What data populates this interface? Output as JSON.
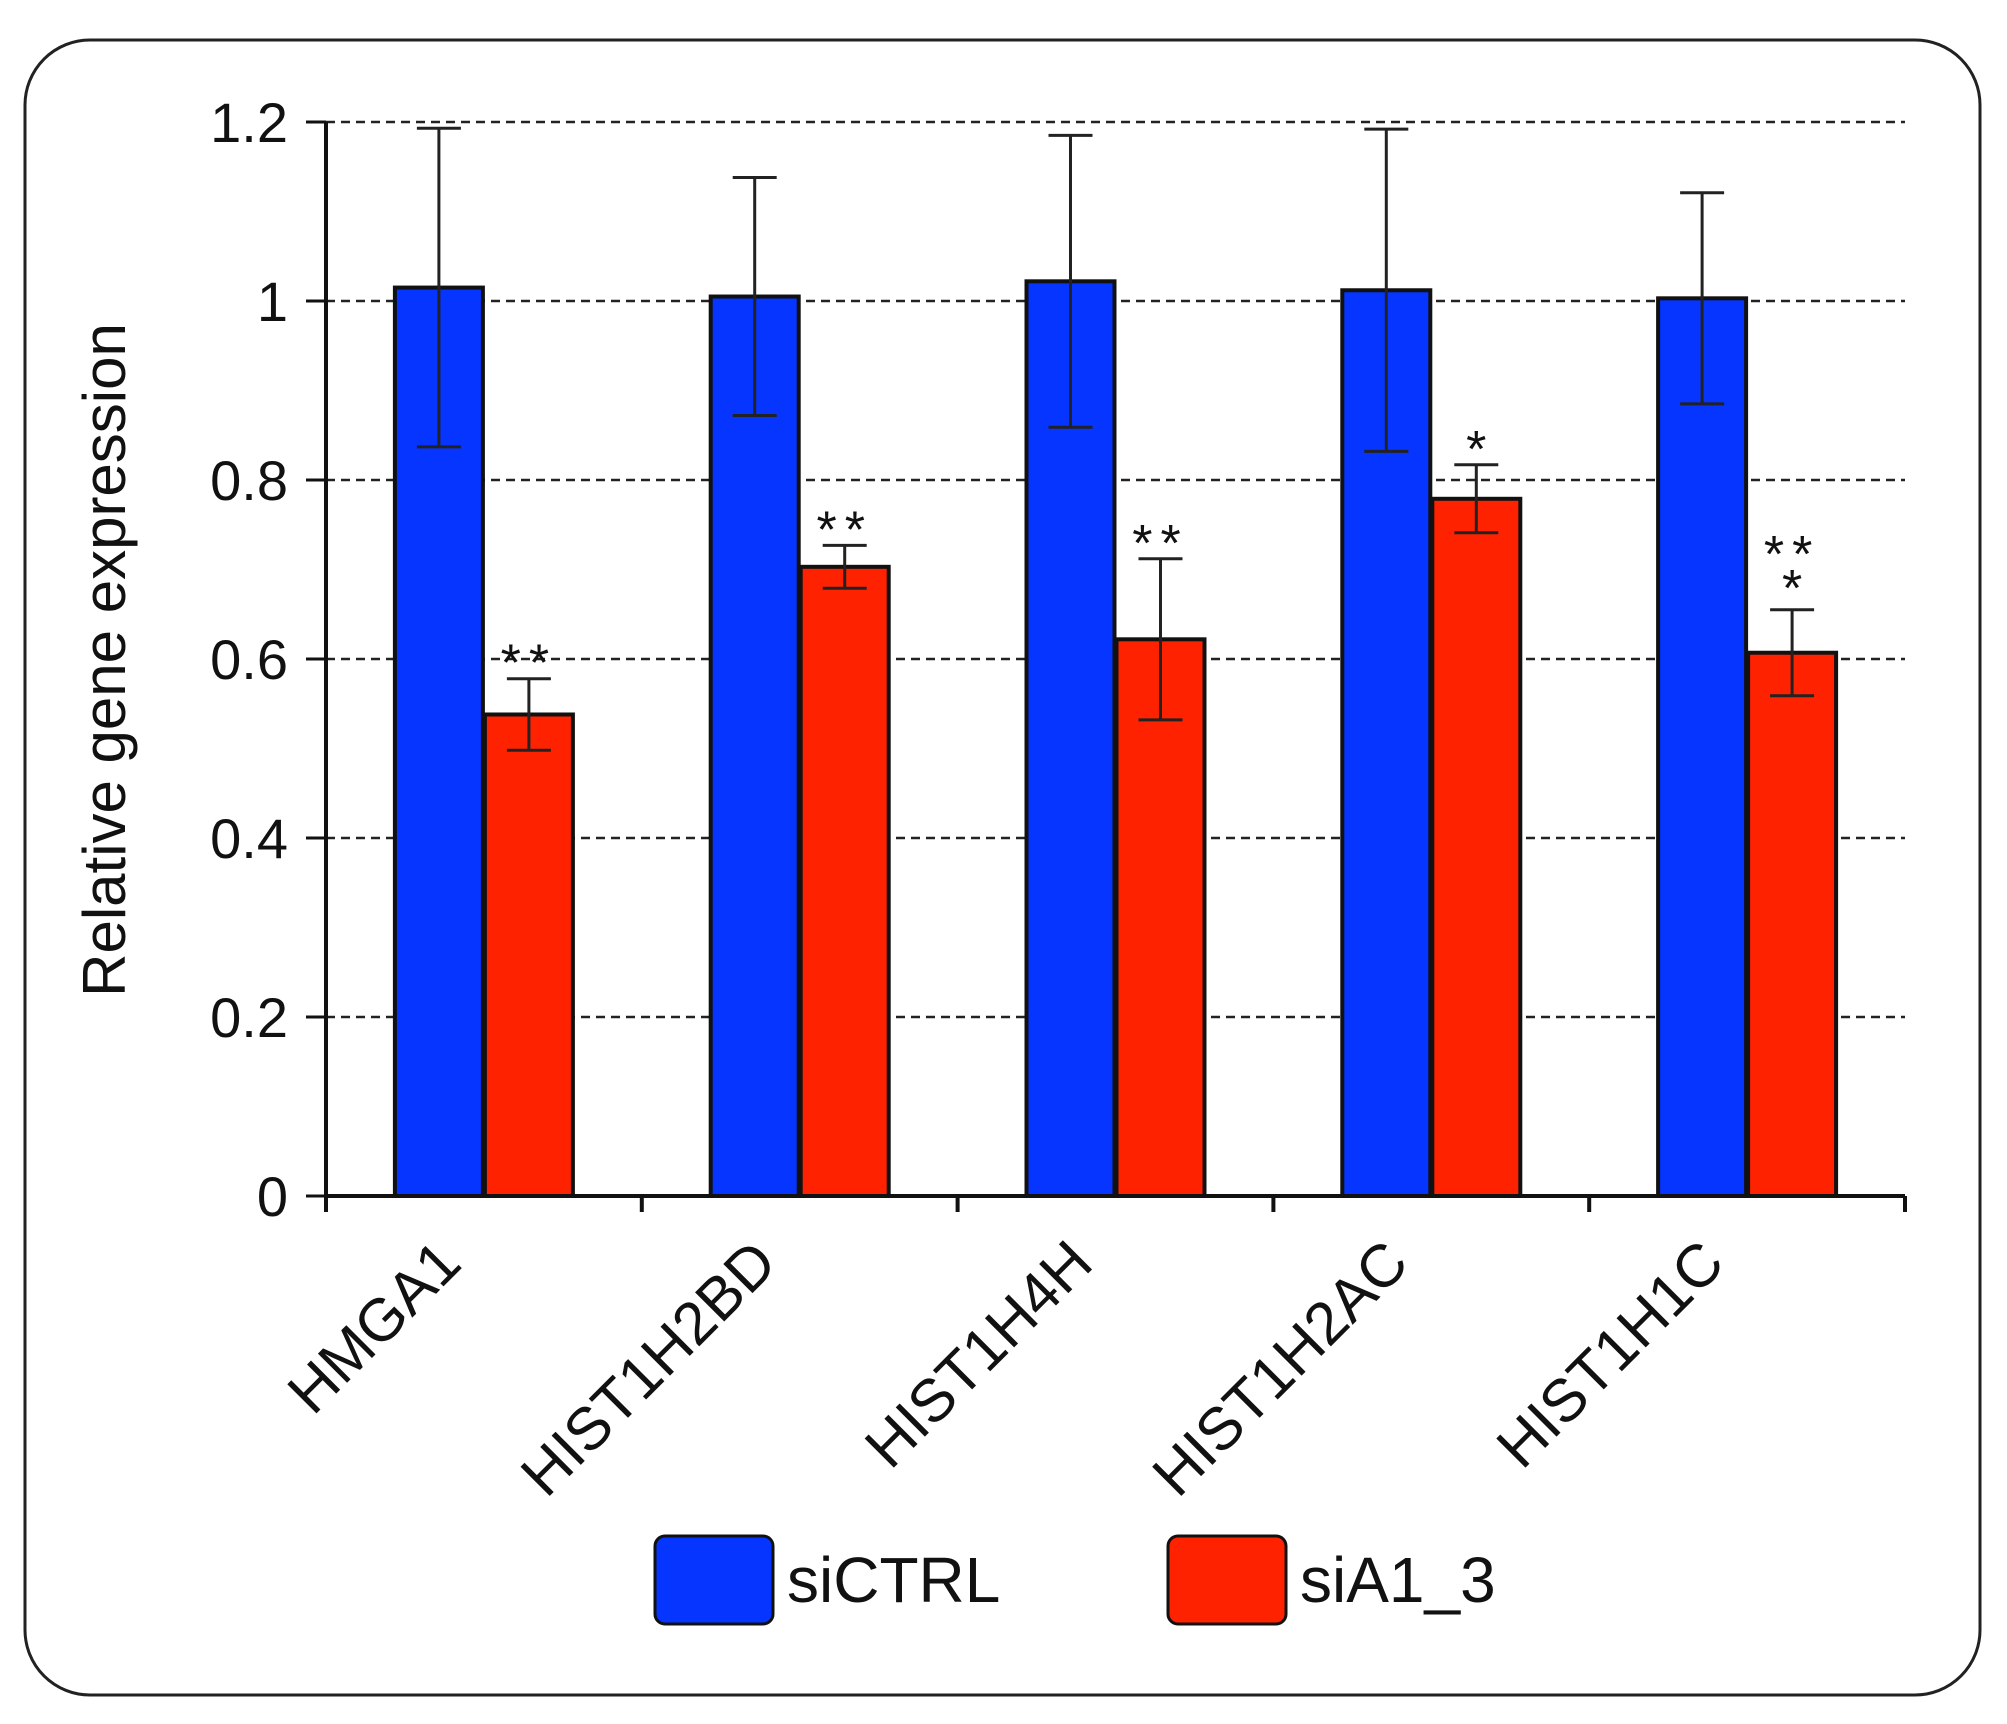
{
  "chart_data": {
    "type": "bar",
    "title": "",
    "xlabel": "",
    "ylabel": "Relative gene expression",
    "ylim": [
      0,
      1.2
    ],
    "yticks": [
      "0",
      "0.2",
      "0.4",
      "0.6",
      "0.8",
      "1",
      "1.2"
    ],
    "grid": true,
    "categories": [
      "HMGA1",
      "HIST1H2BD",
      "HIST1H4H",
      "HIST1H2AC",
      "HIST1H1C"
    ],
    "series": [
      {
        "name": "siCTRL",
        "color": "#0535FF",
        "values": [
          1.015,
          1.005,
          1.022,
          1.012,
          1.003
        ],
        "errors": [
          0.178,
          0.133,
          0.163,
          0.18,
          0.118
        ],
        "significance": [
          "",
          "",
          "",
          "",
          ""
        ]
      },
      {
        "name": "siA1_3",
        "color": "#FF2200",
        "values": [
          0.538,
          0.703,
          0.622,
          0.779,
          0.607
        ],
        "errors": [
          0.04,
          0.024,
          0.09,
          0.038,
          0.048
        ],
        "significance": [
          "**",
          "**",
          "**",
          "*",
          "***"
        ]
      }
    ],
    "legend": {
      "position": "bottom-center"
    }
  }
}
